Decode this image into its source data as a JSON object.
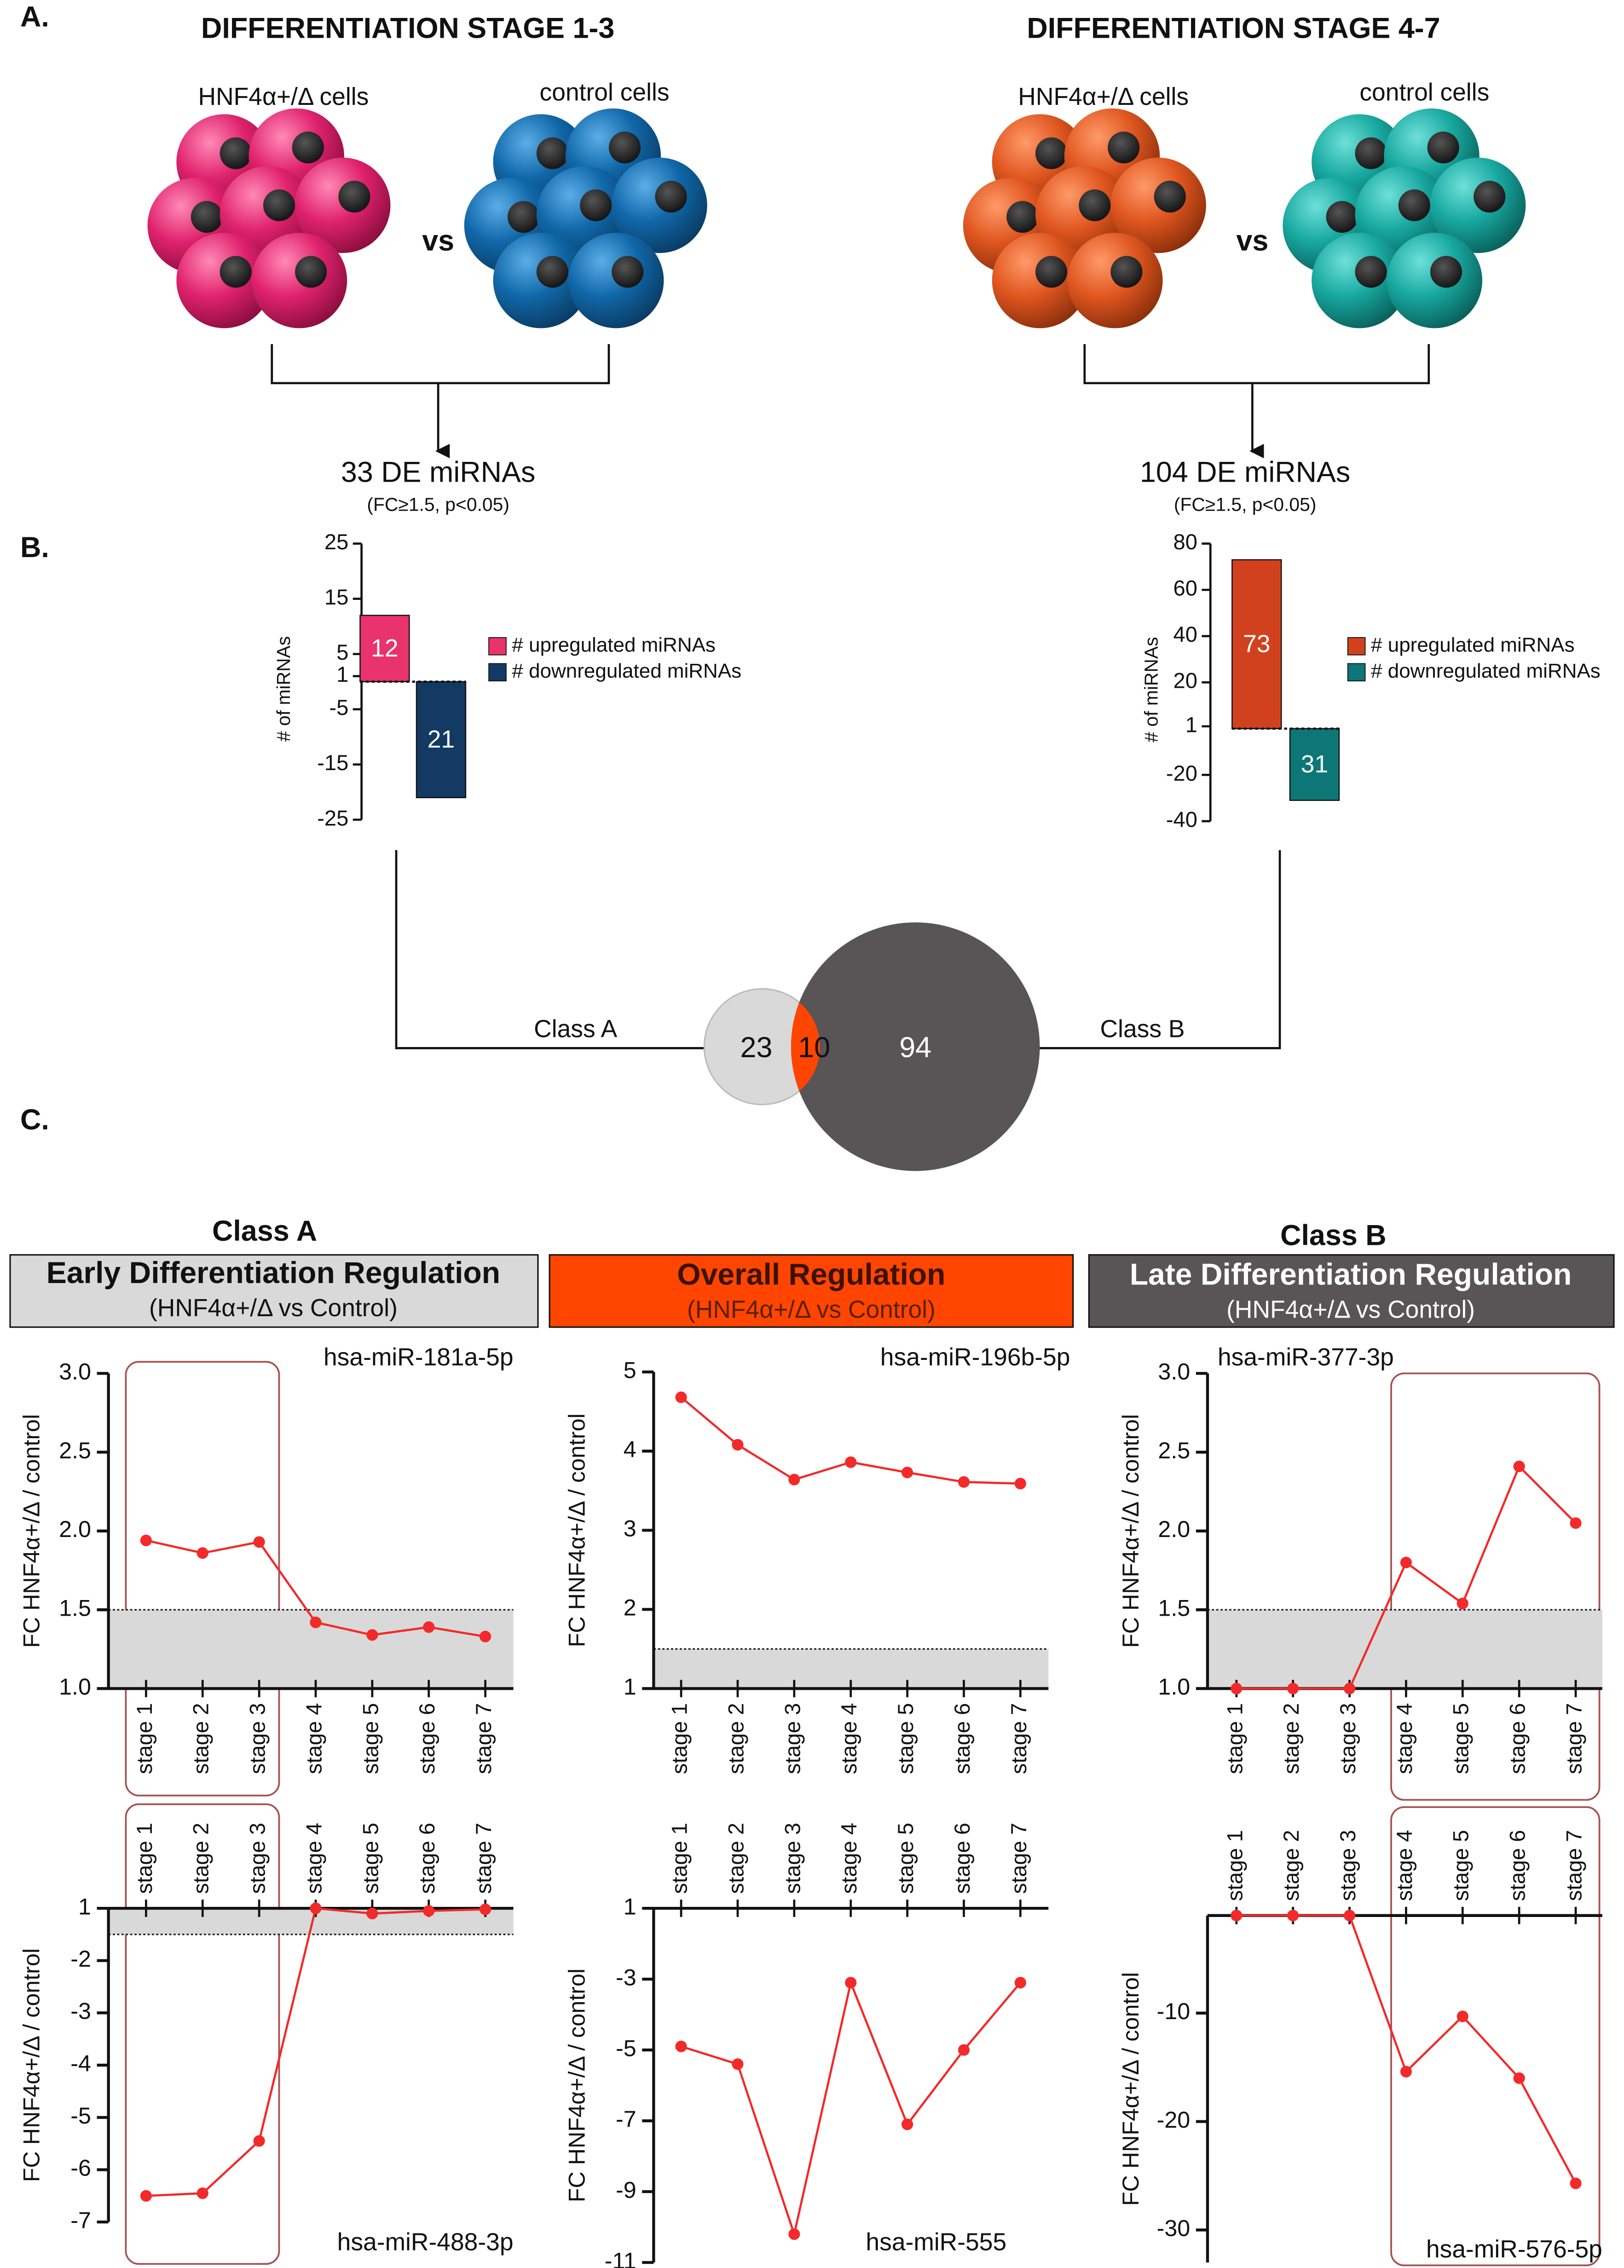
{
  "panel_labels": [
    "A.",
    "B.",
    "C."
  ],
  "groups": [
    {
      "title": "DIFFERENTIATION STAGE 1-3",
      "cells": [
        "HNF4α+/Δ cells",
        "control cells"
      ],
      "vs": "vs",
      "result": "33 DE miRNAs",
      "criteria": "(FC≥1.5, p<0.05)"
    },
    {
      "title": "DIFFERENTIATION STAGE 4-7",
      "cells": [
        "HNF4α+/Δ cells",
        "control cells"
      ],
      "vs": "vs",
      "result": "104 DE miRNAs",
      "criteria": "(FC≥1.5, p<0.05)"
    }
  ],
  "venn": {
    "a_only": 23,
    "both": 10,
    "b_only": 94,
    "a_label": "Class A",
    "b_label": "Class B"
  },
  "classes": [
    {
      "label": "Class A",
      "title": "Early Differentiation Regulation",
      "subtitle": "(HNF4α+/Δ vs Control)"
    },
    {
      "title": "Overall Regulation",
      "subtitle": "(HNF4α+/Δ vs Control)"
    },
    {
      "label": "Class B",
      "title": "Late Differentiation Regulation",
      "subtitle": "(HNF4α+/Δ vs Control)"
    }
  ],
  "chart_data": [
    {
      "type": "bar",
      "ylabel": "# of miRNAs",
      "categories": [
        "# upregulated miRNAs",
        "# downregulated miRNAs"
      ],
      "values": [
        12,
        -21
      ],
      "value_labels": [
        "12",
        "21"
      ],
      "colors": [
        "#e8336d",
        "#123a63"
      ],
      "ylim": [
        -25,
        25
      ],
      "yticks": [
        25,
        15,
        5,
        1,
        -5,
        -15,
        -25
      ]
    },
    {
      "type": "bar",
      "ylabel": "# of miRNAs",
      "categories": [
        "# upregulated miRNAs",
        "# downregulated miRNAs"
      ],
      "values": [
        73,
        -31
      ],
      "value_labels": [
        "73",
        "31"
      ],
      "colors": [
        "#d2411e",
        "#0d7777"
      ],
      "ylim": [
        -40,
        80
      ],
      "yticks": [
        80,
        60,
        40,
        20,
        1,
        -20,
        -40
      ]
    },
    {
      "type": "line",
      "title": "hsa-miR-181a-5p",
      "ylabel": "FC HNF4α+/Δ / control",
      "categories": [
        "stage 1",
        "stage 2",
        "stage 3",
        "stage 4",
        "stage 5",
        "stage 6",
        "stage 7"
      ],
      "values": [
        1.94,
        1.86,
        1.93,
        1.42,
        1.34,
        1.39,
        1.33
      ],
      "color": "#f22a2a",
      "threshold": 1.5,
      "ylim": [
        1,
        3
      ],
      "yticks": [
        {
          "value": 1,
          "label": "1.0"
        },
        1.5,
        {
          "value": 2,
          "label": "2.0"
        },
        2.5,
        {
          "value": 3,
          "label": "3.0"
        }
      ]
    },
    {
      "type": "line",
      "title": "hsa-miR-196b-5p",
      "ylabel": "FC HNF4α+/Δ / control",
      "categories": [
        "stage 1",
        "stage 2",
        "stage 3",
        "stage 4",
        "stage 5",
        "stage 6",
        "stage 7"
      ],
      "values": [
        4.68,
        4.08,
        3.64,
        3.86,
        3.73,
        3.61,
        3.59
      ],
      "color": "#f22a2a",
      "threshold": 1.5,
      "ylim": [
        1,
        5
      ],
      "yticks": [
        1,
        2,
        3,
        4,
        5
      ]
    },
    {
      "type": "line",
      "title": "hsa-miR-377-3p",
      "ylabel": "FC HNF4α+/Δ / control",
      "categories": [
        "stage 1",
        "stage 2",
        "stage 3",
        "stage 4",
        "stage 5",
        "stage 6",
        "stage 7"
      ],
      "values": [
        1,
        1,
        1,
        1.8,
        1.54,
        2.41,
        2.05
      ],
      "color": "#f22a2a",
      "threshold": 1.5,
      "ylim": [
        1,
        3
      ],
      "yticks": [
        {
          "value": 1,
          "label": "1.0"
        },
        1.5,
        {
          "value": 2,
          "label": "2.0"
        },
        2.5,
        {
          "value": 3,
          "label": "3.0"
        }
      ]
    },
    {
      "type": "line",
      "title": "hsa-miR-488-3p",
      "ylabel": "FC HNF4α+/Δ / control",
      "categories": [
        "stage 1",
        "stage 2",
        "stage 3",
        "stage 4",
        "stage 5",
        "stage 6",
        "stage 7"
      ],
      "values": [
        -6.5,
        -6.45,
        -5.45,
        -1.0,
        -1.1,
        -1.05,
        -1.02
      ],
      "color": "#f22a2a",
      "threshold": -1.5,
      "ylim": [
        -7,
        -1
      ],
      "yticks": [
        {
          "value": -1,
          "label": "1"
        },
        -2,
        -3,
        -4,
        -5,
        -6,
        -7
      ]
    },
    {
      "type": "line",
      "title": "hsa-miR-555",
      "ylabel": "FC HNF4α+/Δ / control",
      "categories": [
        "stage 1",
        "stage 2",
        "stage 3",
        "stage 4",
        "stage 5",
        "stage 6",
        "stage 7"
      ],
      "values": [
        -4.9,
        -5.4,
        -10.2,
        -3.1,
        -7.1,
        -5.0,
        -3.1
      ],
      "color": "#f22a2a",
      "ylim": [
        -11,
        -1
      ],
      "yticks": [
        {
          "value": -1,
          "label": "1"
        },
        -3,
        -5,
        -7,
        -9,
        -11
      ]
    },
    {
      "type": "line",
      "title": "hsa-miR-576-5p",
      "ylabel": "FC HNF4α+/Δ / control",
      "categories": [
        "stage 1",
        "stage 2",
        "stage 3",
        "stage 4",
        "stage 5",
        "stage 6",
        "stage 7"
      ],
      "values": [
        -1,
        -1,
        -1,
        -15.4,
        -10.3,
        -16.0,
        -25.7
      ],
      "color": "#f22a2a",
      "ylim": [
        -33,
        -1
      ],
      "yticks": [
        -10,
        -20,
        -30
      ]
    }
  ]
}
